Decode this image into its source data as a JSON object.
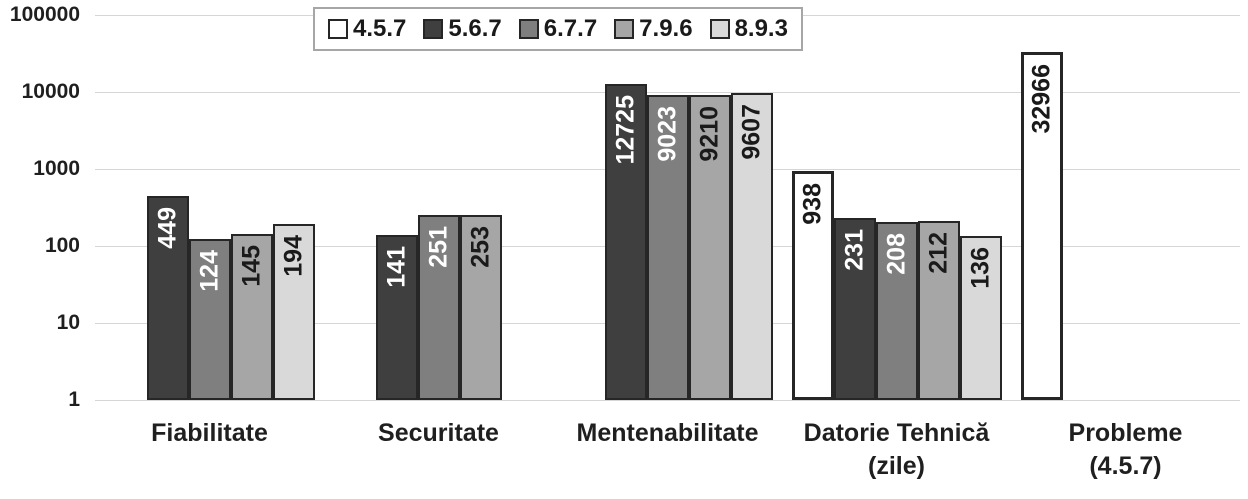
{
  "chart_data": {
    "type": "bar",
    "y_scale": "log10",
    "ylim": [
      1,
      100000
    ],
    "y_ticks": [
      "100000",
      "10000",
      "1000",
      "100",
      "10",
      "1"
    ],
    "grid": true,
    "legend_position": "top",
    "categories": [
      {
        "label": "Fiabilitate",
        "sublabel": ""
      },
      {
        "label": "Securitate",
        "sublabel": ""
      },
      {
        "label": "Mentenabilitate",
        "sublabel": ""
      },
      {
        "label": "Datorie Tehnică",
        "sublabel": "(zile)"
      },
      {
        "label": "Probleme",
        "sublabel": "(4.5.7)"
      }
    ],
    "series": [
      {
        "name": "4.5.7",
        "color": "#ffffff",
        "label_color": "#1a1a1a",
        "values": [
          null,
          null,
          null,
          938,
          32966
        ]
      },
      {
        "name": "5.6.7",
        "color": "#3f3f3f",
        "label_color": "#ffffff",
        "values": [
          449,
          141,
          12725,
          231,
          null
        ]
      },
      {
        "name": "6.7.7",
        "color": "#7f7f7f",
        "label_color": "#ffffff",
        "values": [
          124,
          251,
          9023,
          208,
          null
        ]
      },
      {
        "name": "7.9.6",
        "color": "#a6a6a6",
        "label_color": "#1a1a1a",
        "values": [
          145,
          253,
          9210,
          212,
          null
        ]
      },
      {
        "name": "8.9.3",
        "color": "#d9d9d9",
        "label_color": "#1a1a1a",
        "values": [
          194,
          null,
          9607,
          136,
          null
        ]
      }
    ],
    "colors": {
      "bar_border": "#262626",
      "gridline": "#d6d6d6",
      "axis_text": "#1f1f1f",
      "legend_border": "#a6a6a6",
      "background": "#ffffff"
    }
  }
}
